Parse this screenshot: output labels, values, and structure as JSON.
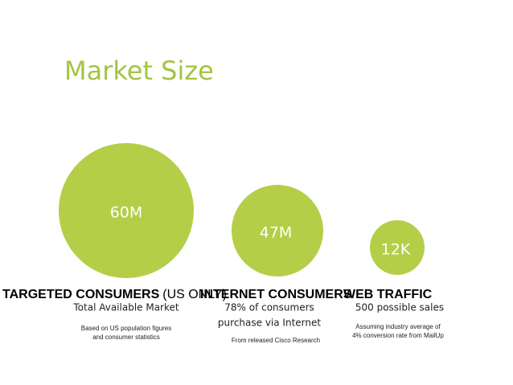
{
  "title": "Market Size",
  "columns": [
    {
      "value": "60M",
      "heading": "TARGETED CONSUMERS",
      "heading_note": "(US ONLY)",
      "subtitle": [
        "Total Available Market"
      ],
      "note": [
        "Based on US population figures",
        "and consumer statistics"
      ]
    },
    {
      "value": "47M",
      "heading": "INTERNET CONSUMERS",
      "subtitle": [
        "78% of consumers",
        "purchase via Internet"
      ],
      "note": [
        "From released Cisco Research"
      ]
    },
    {
      "value": "12K",
      "heading": "WEB TRAFFIC",
      "subtitle": [
        "500 possible sales"
      ],
      "note": [
        "Assuming industry average of",
        "4% conversion rate from MailUp"
      ]
    }
  ]
}
